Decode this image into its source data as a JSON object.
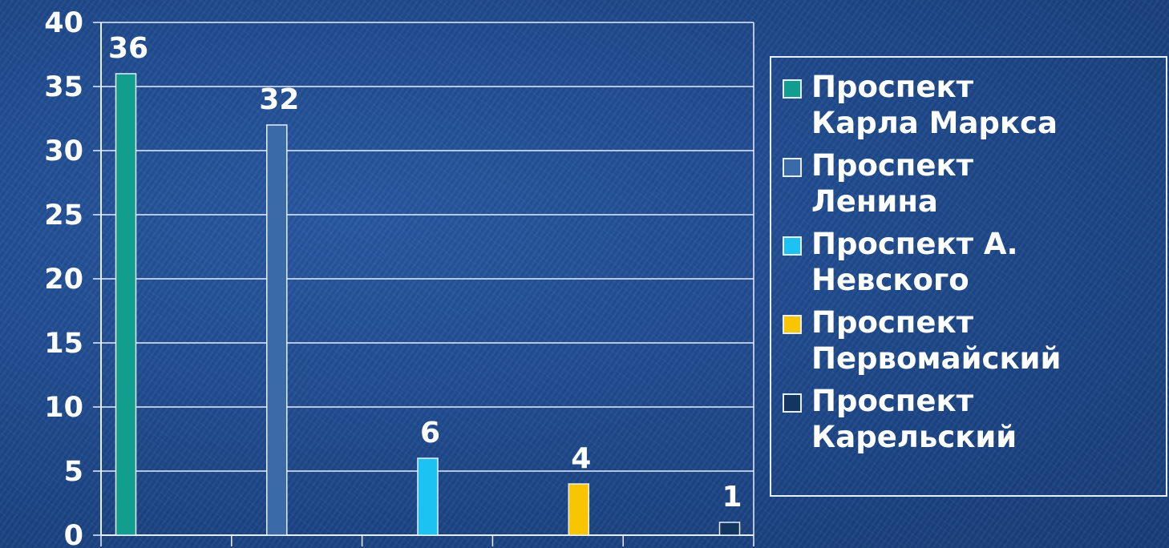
{
  "chart_data": {
    "type": "bar",
    "title": "",
    "xlabel": "",
    "ylabel": "",
    "ylim": [
      0,
      40
    ],
    "yticks": [
      0,
      5,
      10,
      15,
      20,
      25,
      30,
      35,
      40
    ],
    "grid": true,
    "legend_position": "right",
    "series": [
      {
        "name": "Проспект\nКарла Маркса",
        "value": 36,
        "label": "36",
        "color": "#119e8f"
      },
      {
        "name": "Проспект\nЛенина",
        "value": 32,
        "label": "32",
        "color": "#3a6aa8"
      },
      {
        "name": "Проспект А.\nНевского",
        "value": 6,
        "label": "6",
        "color": "#1cc3f2"
      },
      {
        "name": "Проспект\nПервомайский",
        "value": 4,
        "label": "4",
        "color": "#f7c600"
      },
      {
        "name": "Проспект\nКарельский",
        "value": 1,
        "label": "1",
        "color": "#123660"
      }
    ],
    "ytick_labels": [
      "0",
      "5",
      "10",
      "15",
      "20",
      "25",
      "30",
      "35",
      "40"
    ]
  }
}
